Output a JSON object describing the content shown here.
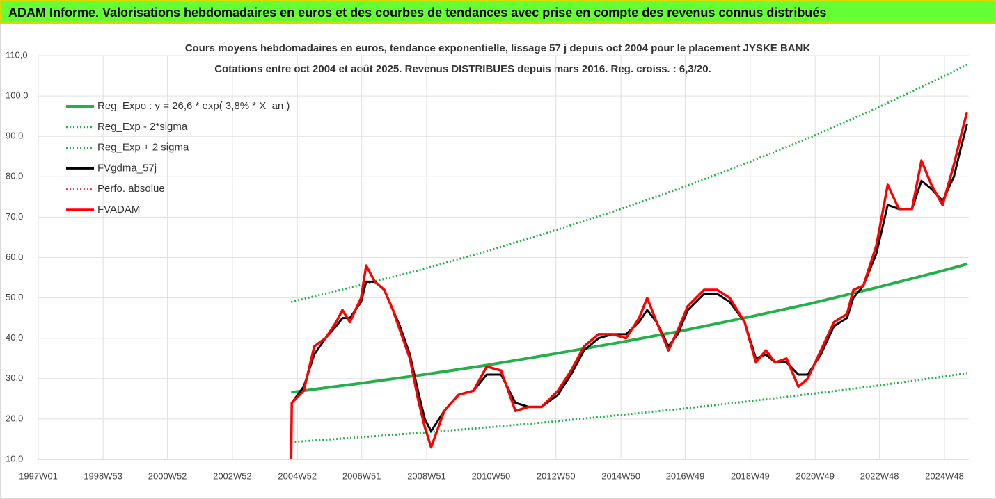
{
  "header": {
    "title": "ADAM Informe. Valorisations hebdomadaires en euros et des courbes de tendances avec prise en compte des revenus connus distribués"
  },
  "chart_data": {
    "type": "line",
    "title": "Cours moyens hebdomadaires en euros, tendance exponentielle, lissage 57 j depuis oct 2004 pour le placement JYSKE BANK",
    "subtitle": "Cotations entre oct 2004 et août 2025. Revenus DISTRIBUES depuis mars 2016. Reg. croiss. : 6,3/20.",
    "xlim": [
      "1997W01",
      "2025W35"
    ],
    "xticks": [
      "1997W01",
      "1998W53",
      "2000W52",
      "2002W52",
      "2004W52",
      "2006W51",
      "2008W51",
      "2010W50",
      "2012W50",
      "2014W50",
      "2016W49",
      "2018W49",
      "2020W49",
      "2022W48",
      "2024W48"
    ],
    "ylim": [
      10,
      110
    ],
    "yticks": [
      {
        "value": 10,
        "label": "10,0"
      },
      {
        "value": 20,
        "label": "20,0"
      },
      {
        "value": 30,
        "label": "30,0"
      },
      {
        "value": 40,
        "label": "40,0"
      },
      {
        "value": 50,
        "label": "50,0"
      },
      {
        "value": 60,
        "label": "60,0"
      },
      {
        "value": 70,
        "label": "70,0"
      },
      {
        "value": 80,
        "label": "80,0"
      },
      {
        "value": 90,
        "label": "90,0"
      },
      {
        "value": 100,
        "label": "100,0"
      },
      {
        "value": 110,
        "label": "110,0"
      }
    ],
    "grid": true,
    "legend": "upper-left",
    "x": [
      "2004W42",
      "2004W43",
      "2005W10",
      "2005W27",
      "2005W45",
      "2006W10",
      "2006W20",
      "2006W32",
      "2006W50",
      "2007W06",
      "2007W20",
      "2007W35",
      "2007W49",
      "2008W08",
      "2008W24",
      "2008W37",
      "2008W48",
      "2009W06",
      "2009W27",
      "2009W50",
      "2010W22",
      "2010W43",
      "2011W14",
      "2011W37",
      "2012W06",
      "2012W27",
      "2013W01",
      "2013W22",
      "2013W43",
      "2014W14",
      "2014W37",
      "2015W06",
      "2015W27",
      "2015W40",
      "2016W03",
      "2016W22",
      "2016W37",
      "2017W01",
      "2017W27",
      "2017W48",
      "2018W16",
      "2018W40",
      "2019W06",
      "2019W22",
      "2019W37",
      "2020W03",
      "2020W22",
      "2020W37",
      "2021W06",
      "2021W27",
      "2021W48",
      "2022W06",
      "2022W22",
      "2022W43",
      "2023W09",
      "2023W27",
      "2023W48",
      "2024W11",
      "2024W27",
      "2024W45",
      "2025W11",
      "2025W22",
      "2025W32"
    ],
    "series": [
      {
        "name": "Reg_Expo : y = 26,6 * exp( 3,8% *  X_an )",
        "color": "#22b04a",
        "width": 4,
        "style": "solid",
        "x": [
          "2004W42",
          "2006W42",
          "2008W42",
          "2010W42",
          "2012W42",
          "2014W42",
          "2016W42",
          "2018W42",
          "2020W42",
          "2022W42",
          "2024W42",
          "2025W33"
        ],
        "values": [
          26.6,
          28.7,
          30.9,
          33.3,
          36.0,
          38.8,
          41.8,
          45.1,
          48.6,
          52.5,
          56.6,
          58.4
        ]
      },
      {
        "name": "Reg_Exp - 2*sigma",
        "color": "#22b04a",
        "width": 3,
        "style": "dotted",
        "x": [
          "2004W42",
          "2006W42",
          "2008W42",
          "2010W42",
          "2012W42",
          "2014W42",
          "2016W42",
          "2018W42",
          "2020W42",
          "2022W42",
          "2024W42",
          "2025W33"
        ],
        "values": [
          14.3,
          15.4,
          16.6,
          17.9,
          19.3,
          20.9,
          22.5,
          24.3,
          26.2,
          28.2,
          30.4,
          31.4
        ]
      },
      {
        "name": "Reg_Exp + 2 sigma",
        "color": "#22b04a",
        "width": 3,
        "style": "dotted",
        "x": [
          "2004W42",
          "2006W42",
          "2008W42",
          "2010W42",
          "2012W42",
          "2014W42",
          "2016W42",
          "2018W42",
          "2020W42",
          "2022W42",
          "2024W42",
          "2025W33"
        ],
        "values": [
          49,
          52.9,
          57.0,
          61.5,
          66.4,
          71.6,
          77.2,
          83.3,
          89.8,
          96.9,
          104.5,
          107.8
        ]
      },
      {
        "name": "FVgdma_57j",
        "color": "#000000",
        "width": 3,
        "style": "solid",
        "values": [
          null,
          24,
          28,
          36,
          40,
          43,
          45,
          45,
          49,
          54,
          54,
          52,
          47,
          43,
          36,
          27,
          20,
          17,
          22,
          26,
          27,
          31,
          31,
          24,
          23,
          23,
          26,
          31,
          37,
          40,
          41,
          41,
          44,
          47,
          44,
          38,
          41,
          47,
          51,
          51,
          49,
          44,
          35,
          36,
          34,
          34,
          31,
          31,
          36,
          43,
          45,
          50,
          53,
          61,
          73,
          72,
          72,
          79,
          77,
          74,
          80,
          87,
          93
        ]
      },
      {
        "name": "Perfo. absolue",
        "color": "#ff2020",
        "width": 2,
        "style": "dotted",
        "values": [
          10,
          24,
          27,
          38,
          40,
          44,
          47,
          44,
          50,
          58,
          54,
          52,
          47,
          42,
          35,
          25,
          18,
          13,
          22,
          26,
          27,
          33,
          32,
          22,
          23,
          23,
          27,
          32,
          38,
          41,
          41,
          40,
          45,
          50,
          44,
          37,
          42,
          48,
          52,
          52,
          50,
          44,
          34,
          37,
          34,
          35,
          28,
          30,
          37,
          44,
          46,
          52,
          53,
          63,
          78,
          72,
          72,
          84,
          78,
          73,
          83,
          90,
          96
        ]
      },
      {
        "name": "FVADAM",
        "color": "#ff0000",
        "width": 3.5,
        "style": "solid",
        "values": [
          10,
          24,
          27,
          38,
          40,
          44,
          47,
          44,
          50,
          58,
          54,
          52,
          47,
          42,
          35,
          25,
          18,
          13,
          22,
          26,
          27,
          33,
          32,
          22,
          23,
          23,
          27,
          32,
          38,
          41,
          41,
          40,
          45,
          50,
          44,
          37,
          42,
          48,
          52,
          52,
          50,
          44,
          34,
          37,
          34,
          35,
          28,
          30,
          37,
          44,
          46,
          52,
          53,
          63,
          78,
          72,
          72,
          84,
          78,
          73,
          83,
          90,
          96
        ]
      }
    ]
  }
}
